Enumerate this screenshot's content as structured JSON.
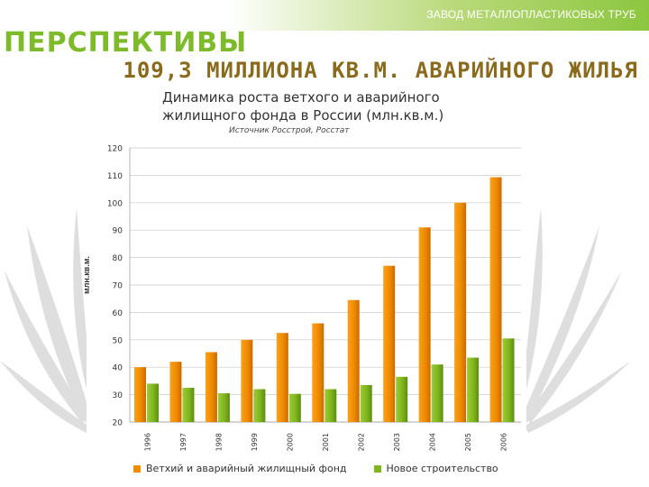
{
  "header": {
    "company": "ЗАВОД МЕТАЛЛОПЛАСТИКОВЫХ ТРУБ",
    "section_title": "ПЕРСПЕКТИВЫ",
    "headline": "109,3 МИЛЛИОНА КВ.М. АВАРИЙНОГО ЖИЛЬЯ"
  },
  "colors": {
    "accent_green": "#8cc63f",
    "headline_brown": "#8a6a1c",
    "series_old": "#f08a00",
    "series_new": "#7fb51c"
  },
  "chart_data": {
    "type": "bar",
    "title": "Динамика роста ветхого и аварийного жилищного фонда в России (млн.кв.м.)",
    "source": "Источник Росстрой, Росстат",
    "ylabel": "млн.кв.м.",
    "xlabel": "",
    "ylim": [
      20,
      120
    ],
    "yticks": [
      20,
      30,
      40,
      50,
      60,
      70,
      80,
      90,
      100,
      110,
      120
    ],
    "grid": true,
    "legend_position": "bottom",
    "categories": [
      "1996",
      "1997",
      "1998",
      "1999",
      "2000",
      "2001",
      "2002",
      "2003",
      "2004",
      "2005",
      "2006"
    ],
    "series": [
      {
        "name": "Ветхий и аварийный жилищный фонд",
        "values": [
          40,
          42,
          45.5,
          50,
          52.5,
          56,
          64.5,
          77,
          91,
          100,
          109.3
        ]
      },
      {
        "name": "Новое строительство",
        "values": [
          34,
          32.5,
          30.5,
          32,
          30.3,
          32,
          33.5,
          36.5,
          41,
          43.5,
          50.5
        ]
      }
    ]
  }
}
